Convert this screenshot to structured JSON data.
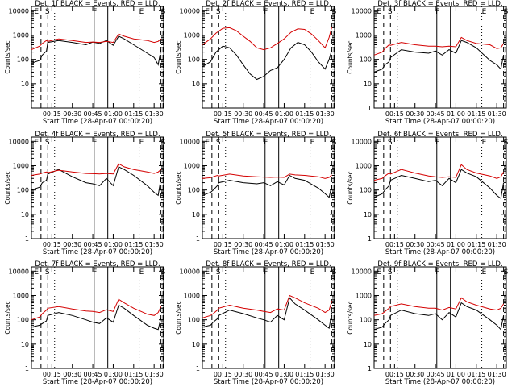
{
  "figure": {
    "ylabel": "Counts/sec",
    "xlabel": "Start Time (28-Apr-07 00:00:20)",
    "y_ticks": [
      "1",
      "10",
      "100",
      "1000",
      "10000"
    ],
    "x_ticks": [
      "00:15",
      "00:30",
      "00:45",
      "01:00",
      "01:15",
      "01:30"
    ],
    "colors": {
      "events": "#000000",
      "lld": "#d40000"
    }
  },
  "chart_data": [
    {
      "type": "line",
      "title": "Det. 1f BLACK = Events, RED = LLD.",
      "region_labels": [
        "E",
        "S",
        "F",
        "E",
        "S"
      ],
      "xlim": [
        "00:00",
        "01:37"
      ],
      "ylim": [
        1,
        15000
      ],
      "yscale": "log",
      "series": [
        {
          "name": "Events",
          "x": [
            "00:00",
            "00:06",
            "00:08",
            "00:11",
            "00:12",
            "00:20",
            "00:30",
            "00:40",
            "00:45",
            "00:50",
            "00:55",
            "01:00",
            "01:04",
            "01:08",
            "01:15",
            "01:25",
            "01:30",
            "01:33",
            "01:35"
          ],
          "y": [
            70,
            90,
            150,
            220,
            500,
            600,
            500,
            400,
            520,
            450,
            600,
            380,
            900,
            700,
            400,
            180,
            120,
            60,
            250
          ]
        },
        {
          "name": "LLD",
          "x": [
            "00:00",
            "00:06",
            "00:08",
            "00:11",
            "00:12",
            "00:20",
            "00:30",
            "00:40",
            "00:45",
            "00:50",
            "00:55",
            "01:00",
            "01:04",
            "01:08",
            "01:15",
            "01:25",
            "01:30",
            "01:33",
            "01:35"
          ],
          "y": [
            250,
            350,
            450,
            600,
            550,
            700,
            600,
            500,
            520,
            500,
            550,
            500,
            1100,
            900,
            700,
            600,
            500,
            550,
            700
          ]
        }
      ]
    },
    {
      "type": "line",
      "title": "Det. 2f BLACK = Events, RED = LLD.",
      "region_labels": [
        "E",
        "S",
        "F",
        "E",
        "S"
      ],
      "xlim": [
        "00:00",
        "01:37"
      ],
      "ylim": [
        1,
        15000
      ],
      "yscale": "log",
      "series": [
        {
          "name": "Events",
          "x": [
            "00:00",
            "00:06",
            "00:10",
            "00:15",
            "00:20",
            "00:25",
            "00:30",
            "00:35",
            "00:40",
            "00:45",
            "00:50",
            "00:55",
            "01:00",
            "01:05",
            "01:10",
            "01:15",
            "01:20",
            "01:25",
            "01:30",
            "01:33",
            "01:35"
          ],
          "y": [
            50,
            80,
            200,
            350,
            300,
            150,
            60,
            25,
            15,
            20,
            35,
            45,
            100,
            300,
            500,
            400,
            200,
            80,
            40,
            100,
            250
          ]
        },
        {
          "name": "LLD",
          "x": [
            "00:00",
            "00:06",
            "00:10",
            "00:15",
            "00:20",
            "00:25",
            "00:30",
            "00:35",
            "00:40",
            "00:45",
            "00:50",
            "00:55",
            "01:00",
            "01:05",
            "01:10",
            "01:15",
            "01:20",
            "01:25",
            "01:30",
            "01:33",
            "01:35"
          ],
          "y": [
            400,
            700,
            1200,
            1900,
            2000,
            1500,
            900,
            550,
            300,
            250,
            300,
            450,
            700,
            1300,
            1800,
            1700,
            1100,
            600,
            300,
            800,
            2200
          ]
        }
      ]
    },
    {
      "type": "line",
      "title": "Det. 3f BLACK = Events, RED = LLD.",
      "region_labels": [
        "E",
        "S",
        "F",
        "E",
        "S"
      ],
      "xlim": [
        "00:00",
        "01:37"
      ],
      "ylim": [
        1,
        15000
      ],
      "yscale": "log",
      "series": [
        {
          "name": "Events",
          "x": [
            "00:00",
            "00:06",
            "00:08",
            "00:11",
            "00:12",
            "00:20",
            "00:30",
            "00:40",
            "00:45",
            "00:50",
            "00:55",
            "01:00",
            "01:04",
            "01:08",
            "01:15",
            "01:25",
            "01:30",
            "01:33",
            "01:35"
          ],
          "y": [
            30,
            40,
            60,
            80,
            120,
            250,
            200,
            180,
            220,
            150,
            250,
            180,
            600,
            500,
            300,
            90,
            60,
            40,
            150
          ]
        },
        {
          "name": "LLD",
          "x": [
            "00:00",
            "00:06",
            "00:08",
            "00:11",
            "00:12",
            "00:20",
            "00:30",
            "00:40",
            "00:45",
            "00:50",
            "00:55",
            "01:00",
            "01:04",
            "01:08",
            "01:15",
            "01:25",
            "01:30",
            "01:33",
            "01:35"
          ],
          "y": [
            150,
            200,
            280,
            400,
            380,
            500,
            400,
            350,
            350,
            330,
            350,
            330,
            800,
            600,
            450,
            400,
            280,
            300,
            450
          ]
        }
      ]
    },
    {
      "type": "line",
      "title": "Det. 4f BLACK = Events, RED = LLD.",
      "region_labels": [
        "E",
        "S",
        "F",
        "E",
        "S"
      ],
      "xlim": [
        "00:00",
        "01:37"
      ],
      "ylim": [
        1,
        15000
      ],
      "yscale": "log",
      "series": [
        {
          "name": "Events",
          "x": [
            "00:00",
            "00:06",
            "00:08",
            "00:11",
            "00:12",
            "00:20",
            "00:30",
            "00:40",
            "00:45",
            "00:50",
            "00:55",
            "01:00",
            "01:04",
            "01:08",
            "01:15",
            "01:25",
            "01:30",
            "01:33",
            "01:35"
          ],
          "y": [
            100,
            130,
            200,
            250,
            450,
            700,
            350,
            200,
            180,
            150,
            300,
            150,
            900,
            700,
            400,
            150,
            80,
            60,
            300
          ]
        },
        {
          "name": "LLD",
          "x": [
            "00:00",
            "00:06",
            "00:08",
            "00:11",
            "00:12",
            "00:20",
            "00:30",
            "00:40",
            "00:45",
            "00:50",
            "00:55",
            "01:00",
            "01:04",
            "01:08",
            "01:15",
            "01:25",
            "01:30",
            "01:33",
            "01:35"
          ],
          "y": [
            400,
            450,
            500,
            550,
            520,
            650,
            550,
            480,
            470,
            460,
            480,
            460,
            1200,
            900,
            700,
            550,
            480,
            550,
            700
          ]
        }
      ]
    },
    {
      "type": "line",
      "title": "Det. 5f BLACK = Events, RED = LLD.",
      "region_labels": [
        "E",
        "S",
        "F",
        "E",
        "S"
      ],
      "xlim": [
        "00:00",
        "01:37"
      ],
      "ylim": [
        1,
        15000
      ],
      "yscale": "log",
      "series": [
        {
          "name": "Events",
          "x": [
            "00:00",
            "00:06",
            "00:08",
            "00:11",
            "00:12",
            "00:20",
            "00:30",
            "00:40",
            "00:45",
            "00:50",
            "00:55",
            "01:00",
            "01:04",
            "01:08",
            "01:15",
            "01:25",
            "01:30",
            "01:33",
            "01:35"
          ],
          "y": [
            60,
            80,
            100,
            150,
            200,
            250,
            200,
            180,
            200,
            150,
            220,
            160,
            400,
            300,
            250,
            120,
            70,
            50,
            160
          ]
        },
        {
          "name": "LLD",
          "x": [
            "00:00",
            "00:06",
            "00:08",
            "00:11",
            "00:12",
            "00:20",
            "00:30",
            "00:40",
            "00:45",
            "00:50",
            "00:55",
            "01:00",
            "01:04",
            "01:08",
            "01:15",
            "01:25",
            "01:30",
            "01:33",
            "01:35"
          ],
          "y": [
            300,
            320,
            350,
            400,
            380,
            450,
            380,
            350,
            340,
            330,
            340,
            330,
            450,
            420,
            400,
            350,
            300,
            330,
            420
          ]
        }
      ]
    },
    {
      "type": "line",
      "title": "Det. 6f BLACK = Events, RED = LLD.",
      "region_labels": [
        "E",
        "S",
        "F",
        "E",
        "S"
      ],
      "xlim": [
        "00:00",
        "01:37"
      ],
      "ylim": [
        1,
        15000
      ],
      "yscale": "log",
      "series": [
        {
          "name": "Events",
          "x": [
            "00:00",
            "00:06",
            "00:08",
            "00:11",
            "00:12",
            "00:20",
            "00:30",
            "00:40",
            "00:45",
            "00:50",
            "00:55",
            "01:00",
            "01:04",
            "01:08",
            "01:15",
            "01:25",
            "01:30",
            "01:33",
            "01:35"
          ],
          "y": [
            50,
            70,
            100,
            150,
            250,
            400,
            300,
            220,
            250,
            150,
            300,
            200,
            700,
            500,
            350,
            120,
            60,
            45,
            200
          ]
        },
        {
          "name": "LLD",
          "x": [
            "00:00",
            "00:06",
            "00:08",
            "00:11",
            "00:12",
            "00:20",
            "00:30",
            "00:40",
            "00:45",
            "00:50",
            "00:55",
            "01:00",
            "01:04",
            "01:08",
            "01:15",
            "01:25",
            "01:30",
            "01:33",
            "01:35"
          ],
          "y": [
            250,
            300,
            380,
            500,
            450,
            700,
            500,
            380,
            350,
            330,
            350,
            330,
            1100,
            700,
            500,
            380,
            300,
            350,
            550
          ]
        }
      ]
    },
    {
      "type": "line",
      "title": "Det. 7f BLACK = Events, RED = LLD.",
      "region_labels": [
        "E",
        "S",
        "F",
        "E",
        "S"
      ],
      "xlim": [
        "00:00",
        "01:37"
      ],
      "ylim": [
        1,
        15000
      ],
      "yscale": "log",
      "series": [
        {
          "name": "Events",
          "x": [
            "00:00",
            "00:06",
            "00:08",
            "00:11",
            "00:12",
            "00:20",
            "00:30",
            "00:40",
            "00:45",
            "00:50",
            "00:55",
            "01:00",
            "01:04",
            "01:08",
            "01:15",
            "01:25",
            "01:30",
            "01:33",
            "01:35"
          ],
          "y": [
            50,
            60,
            70,
            90,
            150,
            200,
            150,
            100,
            80,
            70,
            120,
            80,
            400,
            300,
            150,
            60,
            45,
            40,
            120
          ]
        },
        {
          "name": "LLD",
          "x": [
            "00:00",
            "00:06",
            "00:08",
            "00:11",
            "00:12",
            "00:20",
            "00:30",
            "00:40",
            "00:45",
            "00:50",
            "00:55",
            "01:00",
            "01:04",
            "01:08",
            "01:15",
            "01:25",
            "01:30",
            "01:33",
            "01:35"
          ],
          "y": [
            100,
            130,
            180,
            250,
            300,
            350,
            280,
            230,
            220,
            200,
            260,
            220,
            700,
            500,
            300,
            170,
            150,
            200,
            350
          ]
        }
      ]
    },
    {
      "type": "line",
      "title": "Det. 8f BLACK = Events, RED = LLD.",
      "region_labels": [
        "E",
        "S",
        "F",
        "E",
        "S"
      ],
      "xlim": [
        "00:00",
        "01:37"
      ],
      "ylim": [
        1,
        15000
      ],
      "yscale": "log",
      "series": [
        {
          "name": "Events",
          "x": [
            "00:00",
            "00:06",
            "00:08",
            "00:11",
            "00:12",
            "00:20",
            "00:30",
            "00:40",
            "00:45",
            "00:50",
            "00:55",
            "01:00",
            "01:04",
            "01:08",
            "01:15",
            "01:25",
            "01:30",
            "01:33",
            "01:35"
          ],
          "y": [
            50,
            60,
            80,
            110,
            150,
            250,
            180,
            120,
            100,
            80,
            150,
            100,
            800,
            450,
            250,
            100,
            60,
            45,
            200
          ]
        },
        {
          "name": "LLD",
          "x": [
            "00:00",
            "00:06",
            "00:08",
            "00:11",
            "00:12",
            "00:20",
            "00:30",
            "00:40",
            "00:45",
            "00:50",
            "00:55",
            "01:00",
            "01:04",
            "01:08",
            "01:15",
            "01:25",
            "01:30",
            "01:33",
            "01:35"
          ],
          "y": [
            120,
            150,
            180,
            250,
            300,
            400,
            300,
            250,
            220,
            200,
            280,
            250,
            1000,
            800,
            500,
            300,
            200,
            250,
            600
          ]
        }
      ]
    },
    {
      "type": "line",
      "title": "Det. 9f BLACK = Events, RED = LLD.",
      "region_labels": [
        "E",
        "S",
        "F",
        "E",
        "S"
      ],
      "xlim": [
        "00:00",
        "01:37"
      ],
      "ylim": [
        1,
        15000
      ],
      "yscale": "log",
      "series": [
        {
          "name": "Events",
          "x": [
            "00:00",
            "00:06",
            "00:08",
            "00:11",
            "00:12",
            "00:20",
            "00:30",
            "00:40",
            "00:45",
            "00:50",
            "00:55",
            "01:00",
            "01:04",
            "01:08",
            "01:15",
            "01:25",
            "01:30",
            "01:33",
            "01:35"
          ],
          "y": [
            40,
            50,
            70,
            100,
            150,
            250,
            180,
            150,
            180,
            100,
            200,
            130,
            500,
            350,
            250,
            100,
            60,
            40,
            150
          ]
        },
        {
          "name": "LLD",
          "x": [
            "00:00",
            "00:06",
            "00:08",
            "00:11",
            "00:12",
            "00:20",
            "00:30",
            "00:40",
            "00:45",
            "00:50",
            "00:55",
            "01:00",
            "01:04",
            "01:08",
            "01:15",
            "01:25",
            "01:30",
            "01:33",
            "01:35"
          ],
          "y": [
            150,
            180,
            220,
            300,
            350,
            450,
            350,
            300,
            300,
            250,
            320,
            280,
            800,
            550,
            400,
            280,
            250,
            300,
            450
          ]
        }
      ]
    }
  ]
}
